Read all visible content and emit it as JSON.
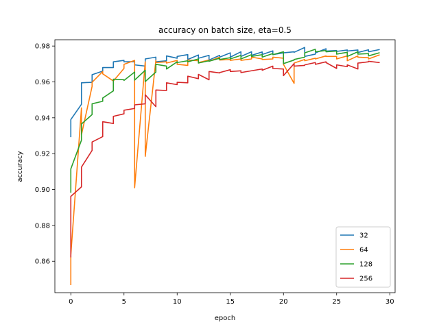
{
  "chart_data": {
    "type": "line",
    "title": "accuracy on batch size, eta=0.5",
    "xlabel": "epoch",
    "ylabel": "accuracy",
    "xlim": [
      -1.5,
      30.5
    ],
    "ylim": [
      0.8425,
      0.9835
    ],
    "xticks": [
      0,
      5,
      10,
      15,
      20,
      25,
      30
    ],
    "yticks": [
      0.86,
      0.88,
      0.9,
      0.92,
      0.94,
      0.96,
      0.98
    ],
    "ytick_labels": [
      "0.86",
      "0.88",
      "0.90",
      "0.92",
      "0.94",
      "0.96",
      "0.98"
    ],
    "legend_position": "lower-right",
    "series": [
      {
        "name": "32",
        "color": "#1f77b4",
        "x": [
          0,
          0,
          1,
          1,
          2,
          2,
          3,
          3,
          4,
          4,
          5,
          5,
          6,
          6,
          7,
          7,
          8,
          8,
          9,
          9,
          10,
          10,
          11,
          11,
          12,
          12,
          13,
          13,
          14,
          14,
          15,
          15,
          16,
          16,
          17,
          17,
          18,
          18,
          19,
          19,
          20,
          20,
          21,
          21,
          22,
          22,
          23,
          23,
          24,
          24,
          25,
          25,
          26,
          26,
          27,
          27,
          28,
          28,
          29
        ],
        "y": [
          0.9295,
          0.939,
          0.9475,
          0.9595,
          0.9598,
          0.964,
          0.966,
          0.968,
          0.968,
          0.9712,
          0.972,
          0.9712,
          0.9713,
          0.9695,
          0.9688,
          0.9728,
          0.9738,
          0.9712,
          0.9718,
          0.9745,
          0.9732,
          0.9742,
          0.9752,
          0.9725,
          0.975,
          0.9732,
          0.9748,
          0.9722,
          0.9748,
          0.9738,
          0.9762,
          0.9738,
          0.9768,
          0.9742,
          0.9768,
          0.9748,
          0.9767,
          0.9753,
          0.9773,
          0.9752,
          0.9762,
          0.9762,
          0.9768,
          0.9765,
          0.9792,
          0.9742,
          0.9755,
          0.9762,
          0.9785,
          0.9772,
          0.9775,
          0.977,
          0.9778,
          0.9772,
          0.9778,
          0.9764,
          0.9779,
          0.9768,
          0.978
        ]
      },
      {
        "name": "64",
        "color": "#ff7f0e",
        "x": [
          0,
          0,
          1,
          1,
          2,
          2,
          3,
          3,
          4,
          4,
          5,
          5,
          6,
          6,
          7,
          7,
          8,
          8,
          9,
          9,
          10,
          10,
          11,
          11,
          12,
          12,
          13,
          13,
          14,
          14,
          15,
          15,
          16,
          16,
          17,
          17,
          18,
          18,
          19,
          19,
          20,
          20,
          21,
          21,
          22,
          22,
          23,
          23,
          24,
          24,
          25,
          25,
          26,
          26,
          27,
          27,
          28,
          28,
          29
        ],
        "y": [
          0.847,
          0.8635,
          0.9455,
          0.9305,
          0.9575,
          0.9598,
          0.9658,
          0.9645,
          0.9605,
          0.9605,
          0.9675,
          0.9698,
          0.972,
          0.901,
          0.9712,
          0.9185,
          0.972,
          0.9708,
          0.9712,
          0.9705,
          0.972,
          0.9698,
          0.9692,
          0.9722,
          0.9718,
          0.9708,
          0.9722,
          0.9715,
          0.9738,
          0.9722,
          0.9725,
          0.972,
          0.9728,
          0.972,
          0.9728,
          0.9738,
          0.9728,
          0.9725,
          0.9728,
          0.9738,
          0.9732,
          0.9698,
          0.9592,
          0.9705,
          0.9725,
          0.9718,
          0.9732,
          0.9728,
          0.9745,
          0.9742,
          0.9742,
          0.9728,
          0.9745,
          0.9718,
          0.9745,
          0.9738,
          0.9735,
          0.9728,
          0.975
        ]
      },
      {
        "name": "128",
        "color": "#2ca02c",
        "x": [
          0,
          0,
          1,
          1,
          2,
          2,
          3,
          3,
          4,
          4,
          5,
          5,
          6,
          6,
          7,
          7,
          8,
          8,
          9,
          9,
          10,
          10,
          11,
          11,
          12,
          12,
          13,
          13,
          14,
          14,
          15,
          15,
          16,
          16,
          17,
          17,
          18,
          18,
          19,
          19,
          20,
          20,
          21,
          21,
          22,
          22,
          23,
          23,
          24,
          24,
          25,
          25,
          26,
          26,
          27,
          27,
          28,
          28,
          29
        ],
        "y": [
          0.8985,
          0.9115,
          0.9275,
          0.9365,
          0.9418,
          0.9478,
          0.9492,
          0.951,
          0.955,
          0.9615,
          0.9612,
          0.9608,
          0.9655,
          0.961,
          0.9665,
          0.9602,
          0.9655,
          0.9698,
          0.9688,
          0.9672,
          0.9712,
          0.9708,
          0.9718,
          0.9712,
          0.9728,
          0.9705,
          0.9718,
          0.9715,
          0.9732,
          0.9725,
          0.9735,
          0.9728,
          0.9748,
          0.9728,
          0.9752,
          0.9742,
          0.9752,
          0.9738,
          0.9758,
          0.9752,
          0.9768,
          0.9702,
          0.9722,
          0.9725,
          0.9738,
          0.9762,
          0.9782,
          0.9768,
          0.9775,
          0.9768,
          0.9772,
          0.9755,
          0.9765,
          0.9742,
          0.9768,
          0.9755,
          0.9758,
          0.9745,
          0.9762
        ]
      },
      {
        "name": "256",
        "color": "#d62728",
        "x": [
          0,
          0,
          1,
          1,
          2,
          2,
          3,
          3,
          4,
          4,
          5,
          5,
          6,
          6,
          7,
          7,
          8,
          8,
          9,
          9,
          10,
          10,
          11,
          11,
          12,
          12,
          13,
          13,
          14,
          14,
          15,
          15,
          16,
          16,
          17,
          17,
          18,
          18,
          19,
          19,
          20,
          20,
          21,
          21,
          22,
          22,
          23,
          23,
          24,
          24,
          25,
          25,
          26,
          26,
          27,
          27,
          28,
          28,
          29
        ],
        "y": [
          0.8625,
          0.8962,
          0.9015,
          0.9125,
          0.9218,
          0.9265,
          0.9295,
          0.9378,
          0.9368,
          0.9408,
          0.9422,
          0.9442,
          0.9452,
          0.9472,
          0.9478,
          0.9528,
          0.9462,
          0.9555,
          0.9552,
          0.9595,
          0.9585,
          0.9598,
          0.9595,
          0.9632,
          0.9618,
          0.9642,
          0.9612,
          0.9658,
          0.965,
          0.9652,
          0.9668,
          0.9658,
          0.9662,
          0.9652,
          0.9662,
          0.9662,
          0.9672,
          0.9665,
          0.9688,
          0.9675,
          0.9672,
          0.9635,
          0.9702,
          0.9688,
          0.9692,
          0.9695,
          0.9708,
          0.9698,
          0.9712,
          0.9708,
          0.9675,
          0.9695,
          0.9685,
          0.9695,
          0.9672,
          0.9705,
          0.9712,
          0.9715,
          0.9708
        ]
      }
    ]
  }
}
